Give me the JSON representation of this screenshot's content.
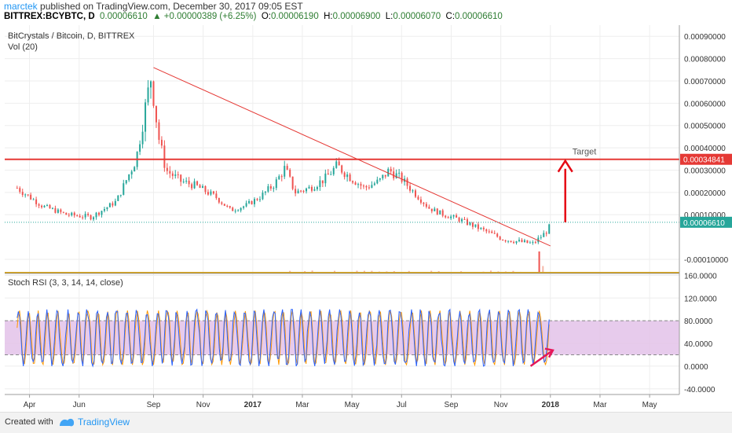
{
  "header": {
    "user": "marctek",
    "published_text": " published on TradingView.com, December 30, 2017 09:05 EST",
    "symbol": "BITTREX:BCYBTC, D",
    "last": "0.00006610",
    "change": "▲ +0.00000389 (+6.25%)",
    "o_label": "O:",
    "o_value": "0.00006190",
    "h_label": "H:",
    "h_value": "0.00006900",
    "l_label": "L:",
    "l_value": "0.00006070",
    "c_label": "C:",
    "c_value": "0.00006610"
  },
  "footer": {
    "created_with": "Created with",
    "brand": "TradingView"
  },
  "chart_data": [
    {
      "type": "candlestick",
      "title": "BitCrystals / Bitcoin, D, BITTREX",
      "volume_label": "Vol (20)",
      "ylim": [
        -0.00016,
        0.00095
      ],
      "y_ticks": [
        "0.00090000",
        "0.00080000",
        "0.00070000",
        "0.00060000",
        "0.00050000",
        "0.00040000",
        "0.00030000",
        "0.00020000",
        "0.00010000",
        "-0.00010000"
      ],
      "y_tick_values": [
        0.0009,
        0.0008,
        0.0007,
        0.0006,
        0.0005,
        0.0004,
        0.0003,
        0.0002,
        0.0001,
        -0.0001
      ],
      "x_ticks": [
        "Apr",
        "Jun",
        "Sep",
        "Nov",
        "2017",
        "Mar",
        "May",
        "Jul",
        "Sep",
        "Nov",
        "2018",
        "Mar",
        "May"
      ],
      "x_tick_months": [
        0.5,
        2.5,
        5.5,
        7.5,
        9.5,
        11.5,
        13.5,
        15.5,
        17.5,
        19.5,
        21.5,
        23.5,
        25.5
      ],
      "price_path": [
        [
          0,
          0.00022
        ],
        [
          1,
          0.00014
        ],
        [
          2,
          0.0001
        ],
        [
          3,
          9e-05
        ],
        [
          4,
          0.00016
        ],
        [
          4.8,
          0.00035
        ],
        [
          5.2,
          0.0006
        ],
        [
          5.4,
          0.00072
        ],
        [
          5.5,
          0.00063
        ],
        [
          5.7,
          0.00045
        ],
        [
          6,
          0.0003
        ],
        [
          6.6,
          0.00025
        ],
        [
          7.2,
          0.00023
        ],
        [
          8,
          0.00018
        ],
        [
          8.6,
          0.00012
        ],
        [
          9.2,
          0.00014
        ],
        [
          9.8,
          0.00018
        ],
        [
          10.4,
          0.00024
        ],
        [
          10.8,
          0.00031
        ],
        [
          11.2,
          0.0002
        ],
        [
          11.8,
          0.00022
        ],
        [
          12.4,
          0.00026
        ],
        [
          12.9,
          0.00032
        ],
        [
          13.4,
          0.00027
        ],
        [
          14,
          0.00022
        ],
        [
          14.6,
          0.00025
        ],
        [
          15,
          0.0003
        ],
        [
          15.5,
          0.00026
        ],
        [
          16,
          0.0002
        ],
        [
          16.6,
          0.00013
        ],
        [
          17.2,
          0.0001
        ],
        [
          17.8,
          8e-05
        ],
        [
          18.4,
          5e-05
        ],
        [
          19,
          2e-05
        ],
        [
          19.6,
          -1e-05
        ],
        [
          20.2,
          -2e-05
        ],
        [
          20.8,
          -3e-05
        ],
        [
          21.4,
          3e-05
        ],
        [
          21.5,
          6e-05
        ]
      ],
      "trendline": [
        [
          5.5,
          0.00076
        ],
        [
          21.5,
          -4e-05
        ]
      ],
      "horizontal_level": {
        "value": 0.00034841,
        "label": "0.00034841",
        "color": "#e53935"
      },
      "last_price": {
        "value": 6.61e-05,
        "label": "0.00006610",
        "color": "#26a69a"
      },
      "target_label": "Target",
      "colors": {
        "up": "#26a69a",
        "down": "#ef5350",
        "line": "#e53935"
      }
    },
    {
      "type": "line",
      "title": "Stoch RSI (3, 3, 14, 14, close)",
      "ylim": [
        -50,
        162
      ],
      "y_ticks": [
        "160.0000",
        "120.0000",
        "80.0000",
        "40.0000",
        "0.0000",
        "-40.0000"
      ],
      "y_tick_values": [
        160,
        120,
        80,
        40,
        0,
        -40
      ],
      "band": [
        20,
        80
      ],
      "band_color": "#e1bee7",
      "series_colors": [
        "#2962ff",
        "#ff9800"
      ]
    }
  ]
}
